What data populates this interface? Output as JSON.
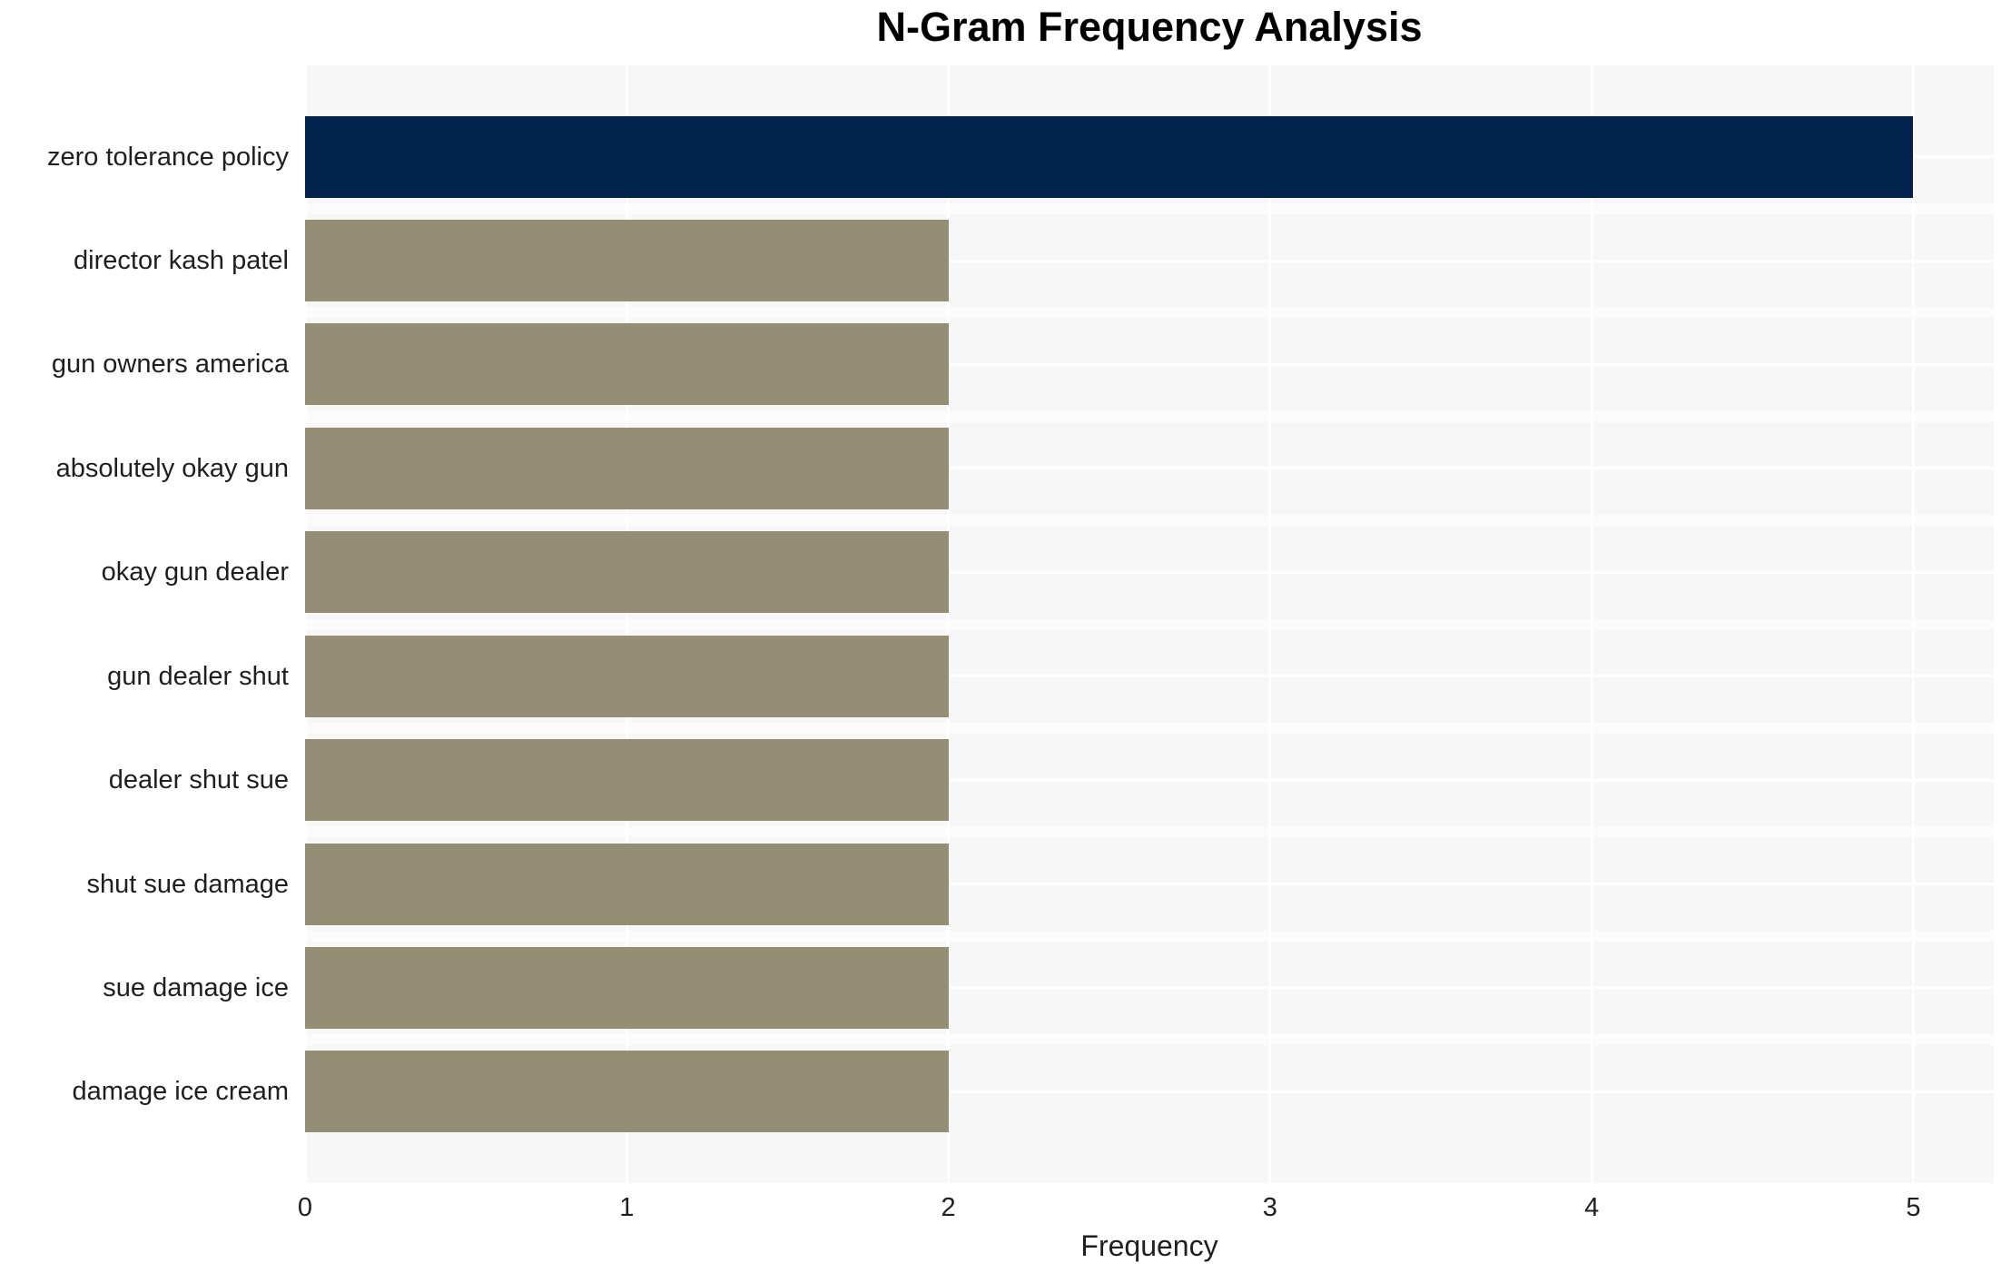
{
  "chart_data": {
    "type": "bar",
    "orientation": "horizontal",
    "title": "N-Gram Frequency Analysis",
    "xlabel": "Frequency",
    "ylabel": "",
    "categories": [
      "zero tolerance policy",
      "director kash patel",
      "gun owners america",
      "absolutely okay gun",
      "okay gun dealer",
      "gun dealer shut",
      "dealer shut sue",
      "shut sue damage",
      "sue damage ice",
      "damage ice cream"
    ],
    "values": [
      5,
      2,
      2,
      2,
      2,
      2,
      2,
      2,
      2,
      2
    ],
    "bar_colors": [
      "#02234E",
      "#948E74",
      "#948E74",
      "#948E74",
      "#948E74",
      "#948E74",
      "#948E74",
      "#948E74",
      "#948E74",
      "#948E74"
    ],
    "xticks": [
      0,
      1,
      2,
      3,
      4,
      5
    ],
    "xlim": [
      0,
      5.25
    ],
    "grid": true,
    "legend": false,
    "colors": {
      "plot_background": "#F7F7F7",
      "gridline": "#FFFFFF",
      "text": "#1F1F1F",
      "title": "#000000",
      "figure_background": "#FFFFFF"
    }
  }
}
